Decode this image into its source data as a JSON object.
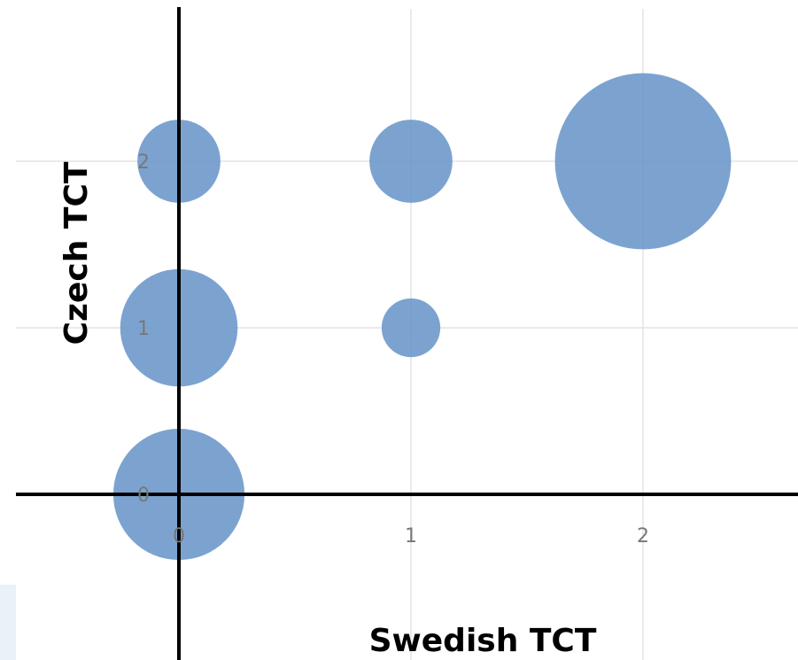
{
  "chart_data": {
    "type": "scatter",
    "title": "",
    "xlabel": "Swedish TCT",
    "ylabel": "Czech TCT",
    "x_ticks": [
      "0",
      "1",
      "2"
    ],
    "y_ticks": [
      "0",
      "1",
      "2"
    ],
    "grid": true,
    "legend": "none",
    "bubble_color": "#6a96c9",
    "points": [
      {
        "x": 0,
        "y": 0,
        "size": 5
      },
      {
        "x": 0,
        "y": 1,
        "size": 4
      },
      {
        "x": 0,
        "y": 2,
        "size": 2
      },
      {
        "x": 1,
        "y": 1,
        "size": 1
      },
      {
        "x": 1,
        "y": 2,
        "size": 2
      },
      {
        "x": 2,
        "y": 2,
        "size": 9
      }
    ]
  }
}
